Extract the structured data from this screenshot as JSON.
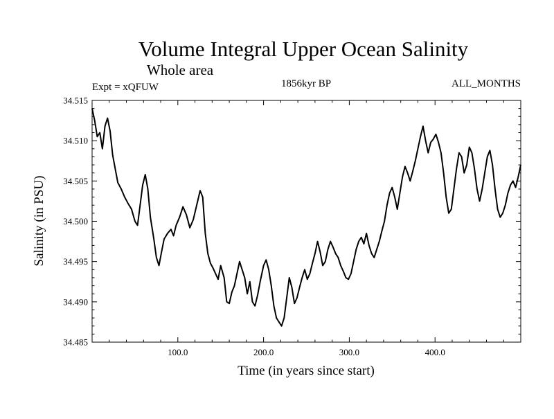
{
  "chart_data": {
    "type": "line",
    "title": "Volume Integral Upper Ocean Salinity",
    "subtitle": "Whole area",
    "experiment": "Expt = xQFUW",
    "period": "1856kyr BP",
    "months": "ALL_MONTHS",
    "xlabel": "Time (in years since start)",
    "ylabel": "Salinity (in PSU)",
    "xlim": [
      0,
      500
    ],
    "ylim": [
      34.485,
      34.515
    ],
    "x_ticks": [
      100,
      200,
      300,
      400
    ],
    "x_tick_labels": [
      "100.0",
      "200.0",
      "300.0",
      "400.0"
    ],
    "y_ticks": [
      34.485,
      34.49,
      34.495,
      34.5,
      34.505,
      34.51,
      34.515
    ],
    "y_tick_labels": [
      "34.485",
      "34.490",
      "34.495",
      "34.500",
      "34.505",
      "34.510",
      "34.515"
    ],
    "grid": false,
    "series": [
      {
        "name": "Salinity",
        "color": "#000000",
        "points": [
          [
            0,
            34.514
          ],
          [
            3,
            34.5125
          ],
          [
            6,
            34.5105
          ],
          [
            9,
            34.511
          ],
          [
            12,
            34.509
          ],
          [
            15,
            34.5118
          ],
          [
            18,
            34.5128
          ],
          [
            21,
            34.5112
          ],
          [
            24,
            34.5082
          ],
          [
            27,
            34.5065
          ],
          [
            30,
            34.5048
          ],
          [
            34,
            34.504
          ],
          [
            38,
            34.503
          ],
          [
            42,
            34.5022
          ],
          [
            46,
            34.5015
          ],
          [
            50,
            34.5
          ],
          [
            53,
            34.4995
          ],
          [
            56,
            34.502
          ],
          [
            59,
            34.5045
          ],
          [
            62,
            34.5058
          ],
          [
            65,
            34.504
          ],
          [
            68,
            34.5005
          ],
          [
            72,
            34.4978
          ],
          [
            75,
            34.4955
          ],
          [
            78,
            34.4945
          ],
          [
            81,
            34.4962
          ],
          [
            84,
            34.4978
          ],
          [
            88,
            34.4985
          ],
          [
            92,
            34.499
          ],
          [
            95,
            34.4982
          ],
          [
            98,
            34.4995
          ],
          [
            102,
            34.5005
          ],
          [
            106,
            34.5018
          ],
          [
            110,
            34.5008
          ],
          [
            114,
            34.4992
          ],
          [
            118,
            34.5002
          ],
          [
            122,
            34.502
          ],
          [
            126,
            34.5038
          ],
          [
            129,
            34.503
          ],
          [
            132,
            34.4985
          ],
          [
            135,
            34.496
          ],
          [
            138,
            34.4948
          ],
          [
            141,
            34.4942
          ],
          [
            144,
            34.4935
          ],
          [
            147,
            34.4928
          ],
          [
            150,
            34.4945
          ],
          [
            154,
            34.493
          ],
          [
            157,
            34.49
          ],
          [
            160,
            34.4898
          ],
          [
            163,
            34.4912
          ],
          [
            166,
            34.492
          ],
          [
            169,
            34.4935
          ],
          [
            172,
            34.495
          ],
          [
            175,
            34.494
          ],
          [
            178,
            34.493
          ],
          [
            181,
            34.491
          ],
          [
            184,
            34.4925
          ],
          [
            187,
            34.49
          ],
          [
            190,
            34.4895
          ],
          [
            193,
            34.4908
          ],
          [
            196,
            34.4925
          ],
          [
            200,
            34.4945
          ],
          [
            203,
            34.4952
          ],
          [
            206,
            34.494
          ],
          [
            209,
            34.492
          ],
          [
            212,
            34.4895
          ],
          [
            215,
            34.488
          ],
          [
            218,
            34.4875
          ],
          [
            221,
            34.487
          ],
          [
            224,
            34.488
          ],
          [
            227,
            34.4905
          ],
          [
            230,
            34.493
          ],
          [
            233,
            34.4918
          ],
          [
            236,
            34.4898
          ],
          [
            239,
            34.4905
          ],
          [
            242,
            34.4918
          ],
          [
            245,
            34.493
          ],
          [
            248,
            34.494
          ],
          [
            251,
            34.4928
          ],
          [
            254,
            34.4935
          ],
          [
            257,
            34.4948
          ],
          [
            260,
            34.496
          ],
          [
            263,
            34.4975
          ],
          [
            266,
            34.4962
          ],
          [
            269,
            34.4945
          ],
          [
            272,
            34.495
          ],
          [
            275,
            34.4965
          ],
          [
            278,
            34.4975
          ],
          [
            281,
            34.4968
          ],
          [
            284,
            34.496
          ],
          [
            287,
            34.4955
          ],
          [
            290,
            34.4945
          ],
          [
            293,
            34.4938
          ],
          [
            296,
            34.493
          ],
          [
            299,
            34.4928
          ],
          [
            302,
            34.4935
          ],
          [
            305,
            34.495
          ],
          [
            308,
            34.4965
          ],
          [
            311,
            34.4975
          ],
          [
            314,
            34.498
          ],
          [
            317,
            34.4972
          ],
          [
            320,
            34.4985
          ],
          [
            323,
            34.497
          ],
          [
            326,
            34.496
          ],
          [
            329,
            34.4955
          ],
          [
            332,
            34.4965
          ],
          [
            335,
            34.4975
          ],
          [
            338,
            34.4988
          ],
          [
            341,
            34.5
          ],
          [
            344,
            34.502
          ],
          [
            347,
            34.5035
          ],
          [
            350,
            34.5042
          ],
          [
            353,
            34.503
          ],
          [
            356,
            34.5015
          ],
          [
            359,
            34.5035
          ],
          [
            362,
            34.5055
          ],
          [
            365,
            34.5068
          ],
          [
            368,
            34.506
          ],
          [
            371,
            34.505
          ],
          [
            374,
            34.5062
          ],
          [
            377,
            34.5075
          ],
          [
            380,
            34.509
          ],
          [
            383,
            34.5105
          ],
          [
            386,
            34.5118
          ],
          [
            389,
            34.51
          ],
          [
            392,
            34.5085
          ],
          [
            395,
            34.5098
          ],
          [
            398,
            34.5102
          ],
          [
            401,
            34.5108
          ],
          [
            404,
            34.5098
          ],
          [
            407,
            34.5085
          ],
          [
            410,
            34.506
          ],
          [
            413,
            34.503
          ],
          [
            416,
            34.501
          ],
          [
            419,
            34.5015
          ],
          [
            422,
            34.504
          ],
          [
            425,
            34.5065
          ],
          [
            428,
            34.5085
          ],
          [
            431,
            34.508
          ],
          [
            434,
            34.506
          ],
          [
            437,
            34.507
          ],
          [
            440,
            34.5092
          ],
          [
            443,
            34.5085
          ],
          [
            446,
            34.5065
          ],
          [
            449,
            34.504
          ],
          [
            452,
            34.5025
          ],
          [
            455,
            34.504
          ],
          [
            458,
            34.506
          ],
          [
            461,
            34.508
          ],
          [
            464,
            34.5088
          ],
          [
            467,
            34.507
          ],
          [
            470,
            34.504
          ],
          [
            473,
            34.5015
          ],
          [
            476,
            34.5005
          ],
          [
            479,
            34.501
          ],
          [
            482,
            34.502
          ],
          [
            485,
            34.5035
          ],
          [
            488,
            34.5045
          ],
          [
            491,
            34.505
          ],
          [
            494,
            34.5042
          ],
          [
            497,
            34.5055
          ],
          [
            500,
            34.507
          ]
        ]
      }
    ]
  }
}
